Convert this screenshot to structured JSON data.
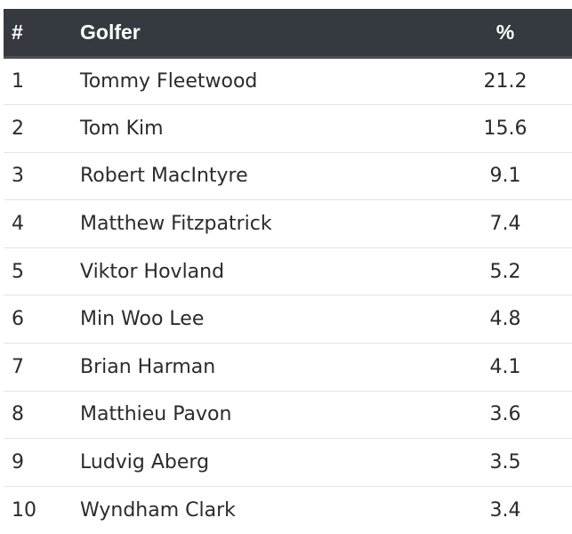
{
  "table": {
    "headers": {
      "rank": "#",
      "golfer": "Golfer",
      "pct": "%"
    },
    "rows": [
      {
        "rank": "1",
        "golfer": "Tommy Fleetwood",
        "pct": "21.2"
      },
      {
        "rank": "2",
        "golfer": "Tom Kim",
        "pct": "15.6"
      },
      {
        "rank": "3",
        "golfer": "Robert MacIntyre",
        "pct": "9.1"
      },
      {
        "rank": "4",
        "golfer": "Matthew Fitzpatrick",
        "pct": "7.4"
      },
      {
        "rank": "5",
        "golfer": "Viktor Hovland",
        "pct": "5.2"
      },
      {
        "rank": "6",
        "golfer": "Min Woo Lee",
        "pct": "4.8"
      },
      {
        "rank": "7",
        "golfer": "Brian Harman",
        "pct": "4.1"
      },
      {
        "rank": "8",
        "golfer": "Matthieu Pavon",
        "pct": "3.6"
      },
      {
        "rank": "9",
        "golfer": "Ludvig Aberg",
        "pct": "3.5"
      },
      {
        "rank": "10",
        "golfer": "Wyndham Clark",
        "pct": "3.4"
      }
    ]
  },
  "colors": {
    "header_bg": "#353a40",
    "header_text": "#ffffff",
    "row_divider": "#e4e4e4",
    "body_text": "#2b2b2b"
  }
}
